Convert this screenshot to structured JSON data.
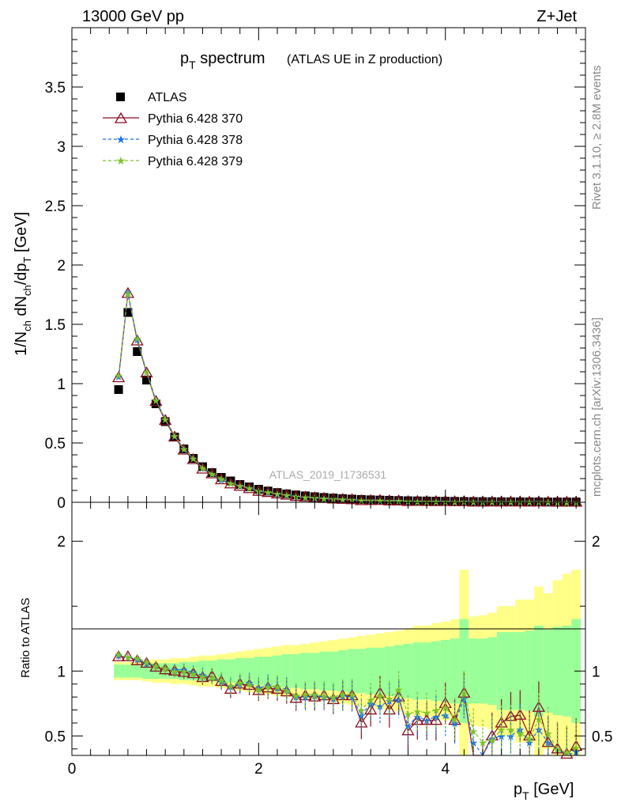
{
  "header": {
    "left": "13000 GeV pp",
    "right": "Z+Jet"
  },
  "side": {
    "rivet": "Rivet 3.1.10, ≥ 2.8M events",
    "mcplots": "mcplots.cern.ch [arXiv:1306.3436]"
  },
  "watermark": "ATLAS_2019_I1736531",
  "legend": {
    "atlas": "ATLAS",
    "p370": "Pythia 6.428 370",
    "p378": "Pythia 6.428 378",
    "p379": "Pythia 6.428 379"
  },
  "colors": {
    "atlas": "#000000",
    "p370": "#8b0e1e",
    "p378": "#1a73e8",
    "p379": "#7cc32a",
    "band_inner": "#99ff99",
    "band_outer": "#ffff88"
  },
  "chart_data": {
    "type": "scatter",
    "title": "p_T spectrum",
    "subtitle": "(ATLAS UE in Z production)",
    "xlabel": "p_T [GeV]",
    "ylabel": "1/N_ch dN_ch/dp_T [GeV]",
    "ratio_ylabel": "Ratio to ATLAS",
    "xlim": [
      0,
      5.5
    ],
    "ylim": [
      0,
      4.0
    ],
    "ratio_ylim": [
      0.35,
      2.3
    ],
    "xticks": [
      "0",
      "2",
      "4"
    ],
    "yticks": [
      "0",
      "0.5",
      "1",
      "1.5",
      "2",
      "2.5",
      "3",
      "3.5"
    ],
    "ratio_yticks": [
      "0.5",
      "1",
      "2"
    ],
    "x": [
      0.5,
      0.6,
      0.7,
      0.8,
      0.9,
      1.0,
      1.1,
      1.2,
      1.3,
      1.4,
      1.5,
      1.6,
      1.7,
      1.8,
      1.9,
      2.0,
      2.1,
      2.2,
      2.3,
      2.4,
      2.5,
      2.6,
      2.7,
      2.8,
      2.9,
      3.0,
      3.1,
      3.2,
      3.3,
      3.4,
      3.5,
      3.6,
      3.7,
      3.8,
      3.9,
      4.0,
      4.1,
      4.2,
      4.3,
      4.4,
      4.5,
      4.6,
      4.7,
      4.8,
      4.9,
      5.0,
      5.1,
      5.2,
      5.3,
      5.4
    ],
    "series": [
      {
        "name": "ATLAS",
        "values": [
          0.95,
          1.6,
          1.27,
          1.03,
          0.83,
          0.68,
          0.55,
          0.45,
          0.37,
          0.3,
          0.25,
          0.21,
          0.18,
          0.15,
          0.13,
          0.11,
          0.095,
          0.082,
          0.071,
          0.062,
          0.054,
          0.047,
          0.041,
          0.036,
          0.031,
          0.027,
          0.024,
          0.021,
          0.019,
          0.017,
          0.015,
          0.013,
          0.012,
          0.011,
          0.01,
          0.009,
          0.008,
          0.007,
          0.0065,
          0.006,
          0.0055,
          0.005,
          0.0046,
          0.0042,
          0.0039,
          0.0036,
          0.0033,
          0.003,
          0.0028,
          0.0026
        ]
      },
      {
        "name": "Pythia 6.428 370",
        "values": [
          1.05,
          1.76,
          1.36,
          1.09,
          0.85,
          0.69,
          0.55,
          0.44,
          0.36,
          0.28,
          0.24,
          0.19,
          0.155,
          0.135,
          0.115,
          0.093,
          0.083,
          0.07,
          0.06,
          0.049,
          0.044,
          0.038,
          0.033,
          0.028,
          0.025,
          0.022,
          0.014,
          0.015,
          0.016,
          0.012,
          0.012,
          0.007,
          0.0075,
          0.0068,
          0.0062,
          0.0068,
          0.005,
          0.0058,
          0.002,
          0.002,
          0.0028,
          0.003,
          0.003,
          0.0028,
          0.002,
          0.0026,
          0.0015,
          0.0012,
          0.001,
          0.0011
        ],
        "ratio": [
          1.11,
          1.11,
          1.08,
          1.06,
          1.03,
          1.01,
          1.0,
          0.99,
          0.98,
          0.95,
          0.96,
          0.92,
          0.86,
          0.9,
          0.89,
          0.85,
          0.87,
          0.86,
          0.84,
          0.79,
          0.81,
          0.8,
          0.81,
          0.78,
          0.81,
          0.81,
          0.6,
          0.7,
          0.83,
          0.7,
          0.8,
          0.54,
          0.62,
          0.62,
          0.62,
          0.75,
          0.62,
          0.83,
          0.3,
          0.3,
          0.5,
          0.6,
          0.65,
          0.66,
          0.5,
          0.72,
          0.45,
          0.4,
          0.36,
          0.42
        ]
      },
      {
        "name": "Pythia 6.428 378",
        "values": [
          1.06,
          1.77,
          1.37,
          1.1,
          0.86,
          0.7,
          0.56,
          0.45,
          0.37,
          0.29,
          0.24,
          0.19,
          0.16,
          0.14,
          0.12,
          0.095,
          0.085,
          0.071,
          0.061,
          0.05,
          0.043,
          0.038,
          0.033,
          0.029,
          0.025,
          0.022,
          0.016,
          0.016,
          0.014,
          0.013,
          0.012,
          0.008,
          0.008,
          0.0069,
          0.0066,
          0.006,
          0.005,
          0.0055,
          0.003,
          0.002,
          0.0027,
          0.0025,
          0.0023,
          0.0024,
          0.0018,
          0.002,
          0.0015,
          0.0012,
          0.0009,
          0.001
        ],
        "ratio": [
          1.12,
          1.11,
          1.09,
          1.06,
          1.04,
          1.02,
          1.01,
          1.01,
          0.99,
          0.97,
          0.95,
          0.92,
          0.88,
          0.9,
          0.91,
          0.87,
          0.89,
          0.87,
          0.86,
          0.8,
          0.8,
          0.81,
          0.8,
          0.79,
          0.81,
          0.8,
          0.66,
          0.75,
          0.73,
          0.77,
          0.78,
          0.58,
          0.65,
          0.62,
          0.65,
          0.66,
          0.6,
          0.79,
          0.45,
          0.3,
          0.48,
          0.5,
          0.5,
          0.55,
          0.45,
          0.55,
          0.45,
          0.4,
          0.33,
          0.38
        ]
      },
      {
        "name": "Pythia 6.428 379",
        "values": [
          1.07,
          1.76,
          1.38,
          1.1,
          0.86,
          0.7,
          0.56,
          0.45,
          0.37,
          0.29,
          0.24,
          0.2,
          0.16,
          0.14,
          0.12,
          0.096,
          0.086,
          0.072,
          0.062,
          0.051,
          0.045,
          0.039,
          0.034,
          0.029,
          0.026,
          0.023,
          0.017,
          0.017,
          0.016,
          0.014,
          0.013,
          0.009,
          0.008,
          0.007,
          0.0066,
          0.0065,
          0.005,
          0.0057,
          0.0035,
          0.003,
          0.0026,
          0.0028,
          0.0027,
          0.0022,
          0.0018,
          0.0024,
          0.0017,
          0.0012,
          0.001,
          0.0011
        ],
        "ratio": [
          1.13,
          1.11,
          1.1,
          1.07,
          1.04,
          1.02,
          1.0,
          1.0,
          0.98,
          0.96,
          0.95,
          0.93,
          0.89,
          0.91,
          0.9,
          0.86,
          0.88,
          0.88,
          0.85,
          0.81,
          0.82,
          0.82,
          0.81,
          0.8,
          0.82,
          0.82,
          0.7,
          0.78,
          0.81,
          0.79,
          0.86,
          0.67,
          0.69,
          0.68,
          0.7,
          0.72,
          0.63,
          0.83,
          0.54,
          0.45,
          0.47,
          0.55,
          0.55,
          0.52,
          0.48,
          0.63,
          0.52,
          0.4,
          0.37,
          0.41
        ]
      }
    ],
    "band_inner_halfwidth": [
      0.05,
      0.05,
      0.05,
      0.06,
      0.06,
      0.06,
      0.06,
      0.07,
      0.07,
      0.08,
      0.08,
      0.09,
      0.09,
      0.1,
      0.1,
      0.11,
      0.11,
      0.12,
      0.13,
      0.13,
      0.14,
      0.14,
      0.15,
      0.15,
      0.16,
      0.17,
      0.17,
      0.18,
      0.18,
      0.19,
      0.2,
      0.21,
      0.22,
      0.22,
      0.23,
      0.24,
      0.25,
      0.4,
      0.25,
      0.25,
      0.26,
      0.3,
      0.3,
      0.3,
      0.31,
      0.35,
      0.32,
      0.34,
      0.35,
      0.4
    ],
    "band_outer_halfwidth": [
      0.07,
      0.07,
      0.07,
      0.08,
      0.09,
      0.09,
      0.1,
      0.1,
      0.11,
      0.12,
      0.12,
      0.13,
      0.14,
      0.15,
      0.16,
      0.17,
      0.18,
      0.19,
      0.2,
      0.2,
      0.21,
      0.22,
      0.23,
      0.24,
      0.25,
      0.26,
      0.27,
      0.28,
      0.29,
      0.3,
      0.31,
      0.33,
      0.35,
      0.35,
      0.37,
      0.38,
      0.4,
      0.78,
      0.42,
      0.43,
      0.45,
      0.5,
      0.5,
      0.55,
      0.55,
      0.65,
      0.6,
      0.7,
      0.75,
      0.78
    ]
  }
}
